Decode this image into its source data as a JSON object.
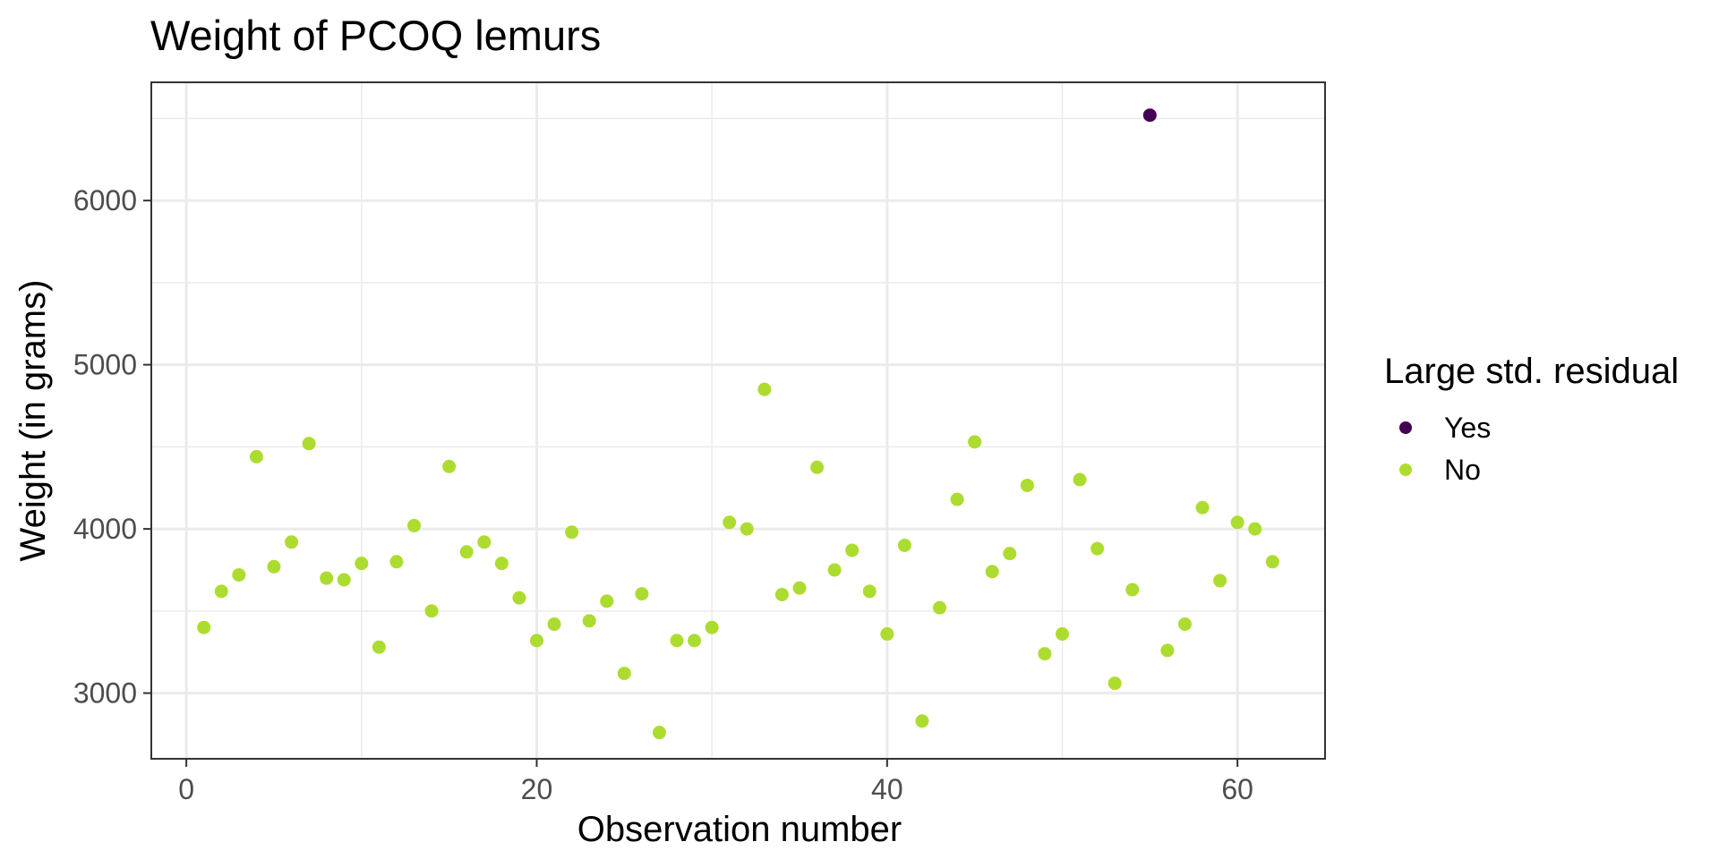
{
  "chart_data": {
    "type": "scatter",
    "title": "Weight of PCOQ lemurs",
    "xlabel": "Observation number",
    "ylabel": "Weight (in grams)",
    "xlim": [
      -2,
      65
    ],
    "ylim": [
      2600,
      6720
    ],
    "x_ticks": [
      0,
      20,
      40,
      60
    ],
    "y_ticks": [
      3000,
      4000,
      5000,
      6000
    ],
    "x_minor_ticks": [
      10,
      30,
      50
    ],
    "y_minor_ticks": [
      3500,
      4500,
      5500,
      6500
    ],
    "grid": true,
    "legend": {
      "title": "Large std. residual",
      "position": "right",
      "entries": [
        {
          "label": "Yes",
          "color": "#440154"
        },
        {
          "label": "No",
          "color": "#addc30"
        }
      ]
    },
    "series": [
      {
        "name": "Yes",
        "color": "#440154",
        "points": [
          [
            55,
            6520
          ]
        ]
      },
      {
        "name": "No",
        "color": "#addc30",
        "points": [
          [
            1,
            3400
          ],
          [
            2,
            3620
          ],
          [
            3,
            3720
          ],
          [
            4,
            4440
          ],
          [
            5,
            3770
          ],
          [
            6,
            3920
          ],
          [
            7,
            4520
          ],
          [
            8,
            3700
          ],
          [
            9,
            3690
          ],
          [
            10,
            3790
          ],
          [
            11,
            3280
          ],
          [
            12,
            3800
          ],
          [
            13,
            4020
          ],
          [
            14,
            3500
          ],
          [
            15,
            4380
          ],
          [
            16,
            3860
          ],
          [
            17,
            3920
          ],
          [
            18,
            3790
          ],
          [
            19,
            3580
          ],
          [
            20,
            3320
          ],
          [
            21,
            3420
          ],
          [
            22,
            3980
          ],
          [
            23,
            3440
          ],
          [
            24,
            3560
          ],
          [
            25,
            3120
          ],
          [
            26,
            3605
          ],
          [
            27,
            2760
          ],
          [
            28,
            3320
          ],
          [
            29,
            3320
          ],
          [
            30,
            3400
          ],
          [
            31,
            4040
          ],
          [
            32,
            4000
          ],
          [
            33,
            4850
          ],
          [
            34,
            3600
          ],
          [
            35,
            3640
          ],
          [
            36,
            4375
          ],
          [
            37,
            3750
          ],
          [
            38,
            3870
          ],
          [
            39,
            3620
          ],
          [
            40,
            3360
          ],
          [
            41,
            3900
          ],
          [
            42,
            2830
          ],
          [
            43,
            3520
          ],
          [
            44,
            4180
          ],
          [
            45,
            4530
          ],
          [
            46,
            3740
          ],
          [
            47,
            3850
          ],
          [
            48,
            4265
          ],
          [
            49,
            3240
          ],
          [
            50,
            3360
          ],
          [
            51,
            4300
          ],
          [
            52,
            3880
          ],
          [
            53,
            3060
          ],
          [
            54,
            3630
          ],
          [
            56,
            3260
          ],
          [
            57,
            3420
          ],
          [
            58,
            4130
          ],
          [
            59,
            3685
          ],
          [
            60,
            4040
          ],
          [
            61,
            4000
          ],
          [
            62,
            3800
          ]
        ]
      }
    ]
  }
}
